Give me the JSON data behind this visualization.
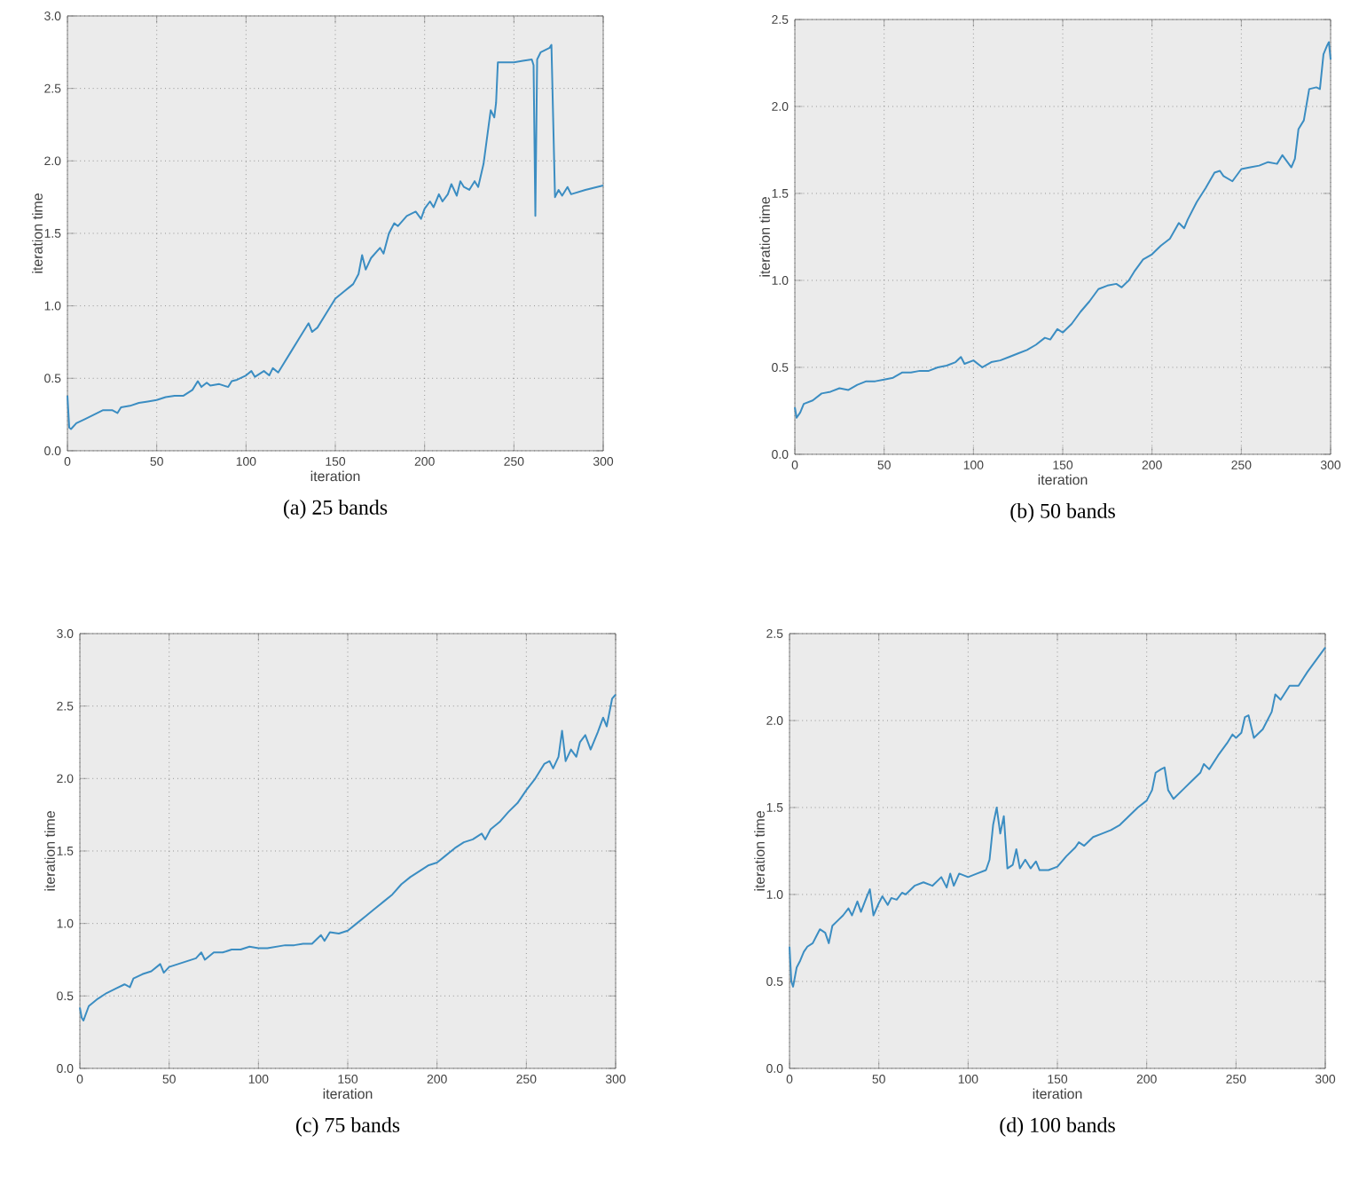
{
  "chart_data": [
    {
      "type": "line",
      "title": "(a) 25 bands",
      "xlabel": "iteration",
      "ylabel": "iteration time",
      "color": "#3b8dc2",
      "grid": true,
      "line_style": "solid",
      "xlim": [
        0,
        300
      ],
      "ylim": [
        0,
        3
      ],
      "xticks": [
        0,
        50,
        100,
        150,
        200,
        250,
        300
      ],
      "yticks": [
        {
          "value": 0,
          "label": "0.0"
        },
        {
          "value": 0.5,
          "label": "0.5"
        },
        {
          "value": 1,
          "label": "1.0"
        },
        {
          "value": 1.5,
          "label": "1.5"
        },
        {
          "value": 2,
          "label": "2.0"
        },
        {
          "value": 2.5,
          "label": "2.5"
        },
        {
          "value": 3,
          "label": "3.0"
        }
      ],
      "x": [
        0,
        1,
        2,
        5,
        10,
        15,
        20,
        25,
        28,
        30,
        35,
        40,
        45,
        50,
        55,
        60,
        65,
        70,
        73,
        75,
        78,
        80,
        85,
        90,
        92,
        95,
        100,
        103,
        105,
        110,
        113,
        115,
        118,
        120,
        125,
        130,
        135,
        137,
        140,
        145,
        150,
        155,
        158,
        160,
        163,
        165,
        167,
        170,
        175,
        177,
        180,
        183,
        185,
        190,
        195,
        198,
        200,
        203,
        205,
        208,
        210,
        213,
        215,
        218,
        220,
        222,
        225,
        228,
        230,
        233,
        237,
        239,
        240,
        241,
        245,
        250,
        255,
        260,
        261,
        262,
        263,
        265,
        270,
        271,
        273,
        275,
        277,
        280,
        282,
        290,
        300
      ],
      "values": [
        0.38,
        0.16,
        0.15,
        0.19,
        0.22,
        0.25,
        0.28,
        0.28,
        0.26,
        0.3,
        0.31,
        0.33,
        0.34,
        0.35,
        0.37,
        0.38,
        0.38,
        0.42,
        0.48,
        0.44,
        0.47,
        0.45,
        0.46,
        0.44,
        0.48,
        0.49,
        0.52,
        0.55,
        0.51,
        0.55,
        0.52,
        0.57,
        0.54,
        0.58,
        0.68,
        0.78,
        0.88,
        0.82,
        0.85,
        0.95,
        1.05,
        1.1,
        1.13,
        1.15,
        1.22,
        1.35,
        1.25,
        1.33,
        1.4,
        1.36,
        1.5,
        1.57,
        1.55,
        1.62,
        1.65,
        1.6,
        1.67,
        1.72,
        1.68,
        1.77,
        1.72,
        1.77,
        1.84,
        1.76,
        1.86,
        1.82,
        1.8,
        1.86,
        1.82,
        1.98,
        2.35,
        2.3,
        2.4,
        2.68,
        2.68,
        2.68,
        2.69,
        2.7,
        2.66,
        1.62,
        2.7,
        2.75,
        2.78,
        2.8,
        1.75,
        1.8,
        1.76,
        1.82,
        1.77,
        1.8,
        1.83
      ]
    },
    {
      "type": "line",
      "title": "(b) 50 bands",
      "xlabel": "iteration",
      "ylabel": "iteration time",
      "color": "#3b8dc2",
      "grid": true,
      "line_style": "solid",
      "xlim": [
        0,
        300
      ],
      "ylim": [
        0,
        2.5
      ],
      "xticks": [
        0,
        50,
        100,
        150,
        200,
        250,
        300
      ],
      "yticks": [
        {
          "value": 0,
          "label": "0.0"
        },
        {
          "value": 0.5,
          "label": "0.5"
        },
        {
          "value": 1,
          "label": "1.0"
        },
        {
          "value": 1.5,
          "label": "1.5"
        },
        {
          "value": 2,
          "label": "2.0"
        },
        {
          "value": 2.5,
          "label": "2.5"
        }
      ],
      "x": [
        0,
        1,
        3,
        5,
        10,
        15,
        20,
        25,
        30,
        35,
        40,
        45,
        50,
        55,
        60,
        65,
        70,
        75,
        80,
        85,
        90,
        93,
        95,
        100,
        105,
        110,
        115,
        120,
        125,
        130,
        135,
        140,
        143,
        147,
        150,
        155,
        160,
        165,
        170,
        175,
        180,
        183,
        187,
        190,
        195,
        200,
        205,
        210,
        215,
        218,
        220,
        225,
        230,
        235,
        238,
        240,
        245,
        250,
        255,
        260,
        265,
        270,
        273,
        278,
        280,
        282,
        285,
        288,
        292,
        294,
        296,
        298,
        299,
        300
      ],
      "values": [
        0.27,
        0.21,
        0.24,
        0.29,
        0.31,
        0.35,
        0.36,
        0.38,
        0.37,
        0.4,
        0.42,
        0.42,
        0.43,
        0.44,
        0.47,
        0.47,
        0.48,
        0.48,
        0.5,
        0.51,
        0.53,
        0.56,
        0.52,
        0.54,
        0.5,
        0.53,
        0.54,
        0.56,
        0.58,
        0.6,
        0.63,
        0.67,
        0.66,
        0.72,
        0.7,
        0.75,
        0.82,
        0.88,
        0.95,
        0.97,
        0.98,
        0.96,
        1.0,
        1.05,
        1.12,
        1.15,
        1.2,
        1.24,
        1.33,
        1.3,
        1.35,
        1.45,
        1.53,
        1.62,
        1.63,
        1.6,
        1.57,
        1.64,
        1.65,
        1.66,
        1.68,
        1.67,
        1.72,
        1.65,
        1.7,
        1.87,
        1.92,
        2.1,
        2.11,
        2.1,
        2.3,
        2.35,
        2.37,
        2.27
      ]
    },
    {
      "type": "line",
      "title": "(c) 75 bands",
      "xlabel": "iteration",
      "ylabel": "iteration time",
      "color": "#3b8dc2",
      "grid": true,
      "line_style": "solid",
      "xlim": [
        0,
        300
      ],
      "ylim": [
        0,
        3
      ],
      "xticks": [
        0,
        50,
        100,
        150,
        200,
        250,
        300
      ],
      "yticks": [
        {
          "value": 0,
          "label": "0.0"
        },
        {
          "value": 0.5,
          "label": "0.5"
        },
        {
          "value": 1,
          "label": "1.0"
        },
        {
          "value": 1.5,
          "label": "1.5"
        },
        {
          "value": 2,
          "label": "2.0"
        },
        {
          "value": 2.5,
          "label": "2.5"
        },
        {
          "value": 3,
          "label": "3.0"
        }
      ],
      "x": [
        0,
        1,
        2,
        5,
        10,
        15,
        20,
        25,
        28,
        30,
        35,
        40,
        45,
        47,
        50,
        55,
        60,
        65,
        68,
        70,
        75,
        80,
        85,
        90,
        95,
        100,
        105,
        110,
        115,
        120,
        125,
        130,
        135,
        137,
        140,
        145,
        150,
        155,
        160,
        165,
        170,
        175,
        180,
        185,
        190,
        195,
        200,
        205,
        210,
        215,
        220,
        225,
        227,
        230,
        235,
        240,
        245,
        250,
        255,
        260,
        263,
        265,
        268,
        270,
        272,
        275,
        278,
        280,
        283,
        286,
        290,
        293,
        295,
        298,
        300
      ],
      "values": [
        0.42,
        0.35,
        0.33,
        0.43,
        0.48,
        0.52,
        0.55,
        0.58,
        0.56,
        0.62,
        0.65,
        0.67,
        0.72,
        0.66,
        0.7,
        0.72,
        0.74,
        0.76,
        0.8,
        0.75,
        0.8,
        0.8,
        0.82,
        0.82,
        0.84,
        0.83,
        0.83,
        0.84,
        0.85,
        0.85,
        0.86,
        0.86,
        0.92,
        0.88,
        0.94,
        0.93,
        0.95,
        1.0,
        1.05,
        1.1,
        1.15,
        1.2,
        1.27,
        1.32,
        1.36,
        1.4,
        1.42,
        1.47,
        1.52,
        1.56,
        1.58,
        1.62,
        1.58,
        1.65,
        1.7,
        1.77,
        1.83,
        1.92,
        2.0,
        2.1,
        2.12,
        2.07,
        2.15,
        2.33,
        2.12,
        2.2,
        2.15,
        2.25,
        2.3,
        2.2,
        2.32,
        2.42,
        2.36,
        2.55,
        2.58
      ]
    },
    {
      "type": "line",
      "title": "(d) 100 bands",
      "xlabel": "iteration",
      "ylabel": "iteration time",
      "color": "#3b8dc2",
      "grid": true,
      "line_style": "solid",
      "xlim": [
        0,
        300
      ],
      "ylim": [
        0,
        2.5
      ],
      "xticks": [
        0,
        50,
        100,
        150,
        200,
        250,
        300
      ],
      "yticks": [
        {
          "value": 0,
          "label": "0.0"
        },
        {
          "value": 0.5,
          "label": "0.5"
        },
        {
          "value": 1,
          "label": "1.0"
        },
        {
          "value": 1.5,
          "label": "1.5"
        },
        {
          "value": 2,
          "label": "2.0"
        },
        {
          "value": 2.5,
          "label": "2.5"
        }
      ],
      "x": [
        0,
        1,
        2,
        4,
        6,
        8,
        10,
        13,
        15,
        17,
        20,
        22,
        24,
        27,
        30,
        33,
        35,
        38,
        40,
        43,
        45,
        47,
        50,
        52,
        55,
        57,
        60,
        63,
        65,
        70,
        75,
        80,
        85,
        88,
        90,
        92,
        95,
        100,
        105,
        110,
        112,
        114,
        116,
        118,
        120,
        122,
        125,
        127,
        129,
        132,
        135,
        138,
        140,
        145,
        150,
        155,
        160,
        162,
        165,
        170,
        175,
        180,
        185,
        190,
        195,
        200,
        203,
        205,
        208,
        210,
        212,
        215,
        220,
        225,
        230,
        232,
        235,
        240,
        245,
        248,
        250,
        253,
        255,
        257,
        260,
        265,
        270,
        272,
        275,
        280,
        285,
        290,
        295,
        300
      ],
      "values": [
        0.7,
        0.5,
        0.47,
        0.58,
        0.62,
        0.67,
        0.7,
        0.72,
        0.76,
        0.8,
        0.78,
        0.72,
        0.82,
        0.85,
        0.88,
        0.92,
        0.88,
        0.96,
        0.9,
        0.98,
        1.03,
        0.88,
        0.95,
        0.99,
        0.94,
        0.98,
        0.97,
        1.01,
        1.0,
        1.05,
        1.07,
        1.05,
        1.1,
        1.04,
        1.12,
        1.05,
        1.12,
        1.1,
        1.12,
        1.14,
        1.2,
        1.4,
        1.5,
        1.35,
        1.45,
        1.15,
        1.17,
        1.26,
        1.15,
        1.2,
        1.15,
        1.19,
        1.14,
        1.14,
        1.16,
        1.22,
        1.27,
        1.3,
        1.28,
        1.33,
        1.35,
        1.37,
        1.4,
        1.45,
        1.5,
        1.54,
        1.6,
        1.7,
        1.72,
        1.73,
        1.6,
        1.55,
        1.6,
        1.65,
        1.7,
        1.75,
        1.72,
        1.8,
        1.87,
        1.92,
        1.9,
        1.93,
        2.02,
        2.03,
        1.9,
        1.95,
        2.05,
        2.15,
        2.12,
        2.2,
        2.2,
        2.28,
        2.35,
        2.42
      ]
    }
  ]
}
